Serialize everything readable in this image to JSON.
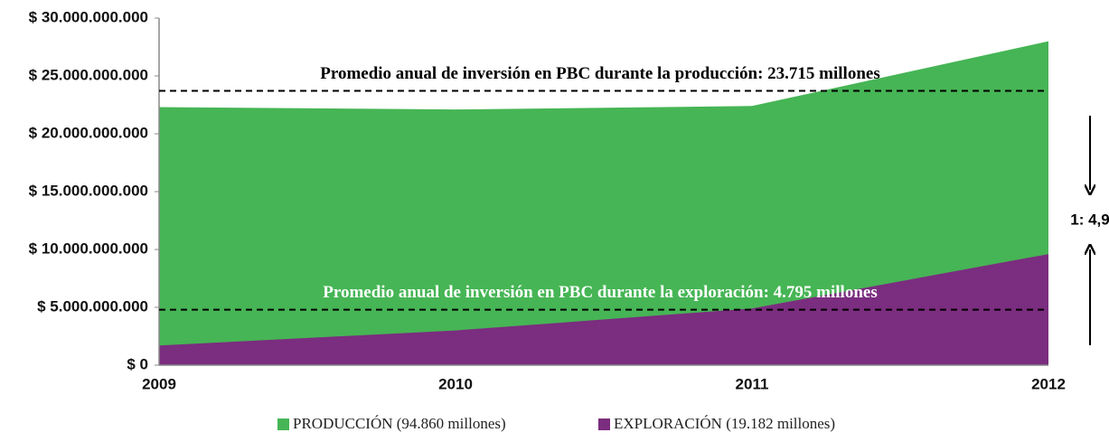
{
  "chart_data": {
    "type": "area",
    "categories": [
      "2009",
      "2010",
      "2011",
      "2012"
    ],
    "series": [
      {
        "name": "PRODUCCIÓN (94.860 millones)",
        "color": "#46b555",
        "values": [
          22300000000,
          22100000000,
          22400000000,
          28000000000
        ]
      },
      {
        "name": "EXPLORACIÓN (19.182 millones)",
        "color": "#7b2d7f",
        "values": [
          1700000000,
          3000000000,
          4900000000,
          9600000000
        ]
      }
    ],
    "ylim": [
      0,
      30000000000
    ],
    "yticks": [
      {
        "value": 0,
        "label": "$ 0"
      },
      {
        "value": 5000000000,
        "label": "$ 5.000.000.000"
      },
      {
        "value": 10000000000,
        "label": "$ 10.000.000.000"
      },
      {
        "value": 15000000000,
        "label": "$ 15.000.000.000"
      },
      {
        "value": 20000000000,
        "label": "$ 20.000.000.000"
      },
      {
        "value": 25000000000,
        "label": "$ 25.000.000.000"
      },
      {
        "value": 30000000000,
        "label": "$ 30.000.000.000"
      }
    ],
    "reference_lines": [
      {
        "label": "Promedio anual de inversión en PBC durante la producción: 23.715 millones",
        "value": 23715000000,
        "text_color": "#000000"
      },
      {
        "label": "Promedio anual de inversión en PBC durante la exploración: 4.795 millones",
        "value": 4795000000,
        "text_color": "#ffffff"
      }
    ],
    "ratio_annotation": "1: 4,9",
    "legend": "bottom"
  }
}
